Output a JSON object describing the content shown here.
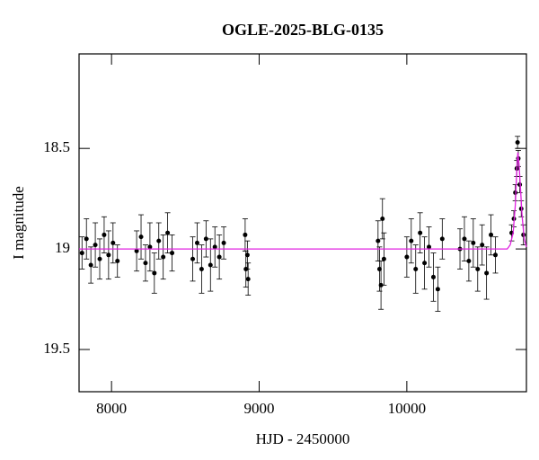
{
  "chart_data": {
    "type": "scatter",
    "title": "OGLE-2025-BLG-0135",
    "x_label": "HJD - 2450000",
    "y_label": "I magnitude",
    "xlim": [
      7780,
      10810
    ],
    "ylim": [
      18.03,
      19.71
    ],
    "y_inverted": true,
    "xticks": [
      8000,
      9000,
      10000
    ],
    "yticks": [
      18.5,
      19,
      19.5
    ],
    "data": {
      "color": "#000000",
      "x": [
        7800,
        7830,
        7860,
        7890,
        7920,
        7950,
        7980,
        8010,
        8040,
        8170,
        8200,
        8230,
        8260,
        8290,
        8320,
        8350,
        8380,
        8410,
        8550,
        8580,
        8610,
        8640,
        8670,
        8700,
        8730,
        8760,
        8905,
        8910,
        8920,
        8925,
        9805,
        9815,
        9825,
        9835,
        9845,
        10000,
        10030,
        10060,
        10090,
        10120,
        10150,
        10180,
        10210,
        10240,
        10360,
        10390,
        10420,
        10450,
        10480,
        10510,
        10540,
        10570,
        10600,
        10710,
        10725,
        10735,
        10745,
        10750,
        10755,
        10765,
        10775,
        10790
      ],
      "y": [
        19.02,
        18.95,
        19.08,
        18.98,
        19.05,
        18.93,
        19.03,
        18.97,
        19.06,
        19.01,
        18.94,
        19.07,
        18.99,
        19.12,
        18.96,
        19.04,
        18.92,
        19.02,
        19.05,
        18.97,
        19.1,
        18.95,
        19.08,
        18.99,
        19.04,
        18.97,
        18.93,
        19.1,
        19.03,
        19.15,
        18.96,
        19.1,
        19.18,
        18.85,
        19.05,
        19.04,
        18.96,
        19.1,
        18.92,
        19.07,
        18.99,
        19.14,
        19.2,
        18.95,
        19.0,
        18.95,
        19.06,
        18.97,
        19.1,
        18.98,
        19.12,
        18.93,
        19.03,
        18.92,
        18.85,
        18.72,
        18.6,
        18.47,
        18.55,
        18.68,
        18.8,
        18.93
      ],
      "err": [
        0.08,
        0.1,
        0.09,
        0.11,
        0.1,
        0.09,
        0.12,
        0.1,
        0.08,
        0.1,
        0.11,
        0.09,
        0.12,
        0.1,
        0.09,
        0.11,
        0.1,
        0.09,
        0.11,
        0.1,
        0.12,
        0.09,
        0.13,
        0.1,
        0.11,
        0.08,
        0.08,
        0.09,
        0.07,
        0.08,
        0.1,
        0.11,
        0.12,
        0.1,
        0.13,
        0.1,
        0.11,
        0.12,
        0.1,
        0.13,
        0.1,
        0.12,
        0.11,
        0.1,
        0.1,
        0.11,
        0.1,
        0.12,
        0.11,
        0.1,
        0.13,
        0.1,
        0.09,
        0.04,
        0.04,
        0.04,
        0.04,
        0.03,
        0.04,
        0.04,
        0.04,
        0.05
      ]
    },
    "model": {
      "color": "#e020e0",
      "x": [
        7780,
        10680,
        10700,
        10720,
        10735,
        10745,
        10752,
        10760,
        10770,
        10780,
        10795,
        10810
      ],
      "y": [
        19.0,
        19.0,
        18.98,
        18.92,
        18.78,
        18.6,
        18.52,
        18.58,
        18.7,
        18.83,
        18.95,
        18.99
      ]
    }
  }
}
